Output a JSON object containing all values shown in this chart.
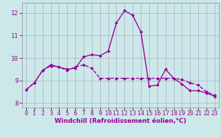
{
  "xlabel": "Windchill (Refroidissement éolien,°C)",
  "line_color": "#990099",
  "bg_color": "#cce8e8",
  "grid_color": "#aaaacc",
  "xlim": [
    -0.5,
    23.5
  ],
  "ylim": [
    7.8,
    12.45
  ],
  "yticks": [
    8,
    9,
    10,
    11,
    12
  ],
  "xticks": [
    0,
    1,
    2,
    3,
    4,
    5,
    6,
    7,
    8,
    9,
    10,
    11,
    12,
    13,
    14,
    15,
    16,
    17,
    18,
    19,
    20,
    21,
    22,
    23
  ],
  "series1_x": [
    0,
    1,
    2,
    3,
    4,
    5,
    6,
    7,
    8,
    9,
    10,
    11,
    12,
    13,
    14,
    15,
    16,
    17,
    18,
    19,
    20,
    21,
    22,
    23
  ],
  "series1_y": [
    8.6,
    8.9,
    9.45,
    9.7,
    9.6,
    9.5,
    9.55,
    10.05,
    10.15,
    10.1,
    10.3,
    11.55,
    12.1,
    11.9,
    11.15,
    8.75,
    8.8,
    9.5,
    9.1,
    8.85,
    8.55,
    8.55,
    8.45,
    8.3
  ],
  "series2_x": [
    0,
    1,
    2,
    3,
    4,
    5,
    6,
    7,
    8,
    9,
    10,
    11,
    12,
    13,
    14,
    15,
    16,
    17,
    18,
    19,
    20,
    21,
    22,
    23
  ],
  "series2_y": [
    8.6,
    8.9,
    9.45,
    9.65,
    9.6,
    9.45,
    9.6,
    9.7,
    9.55,
    9.1,
    9.1,
    9.1,
    9.1,
    9.1,
    9.1,
    9.1,
    9.1,
    9.1,
    9.1,
    9.05,
    8.9,
    8.8,
    8.5,
    8.35
  ],
  "marker_size": 2.5,
  "linewidth": 1.0,
  "xlabel_fontsize": 6.5,
  "tick_fontsize": 6.0
}
